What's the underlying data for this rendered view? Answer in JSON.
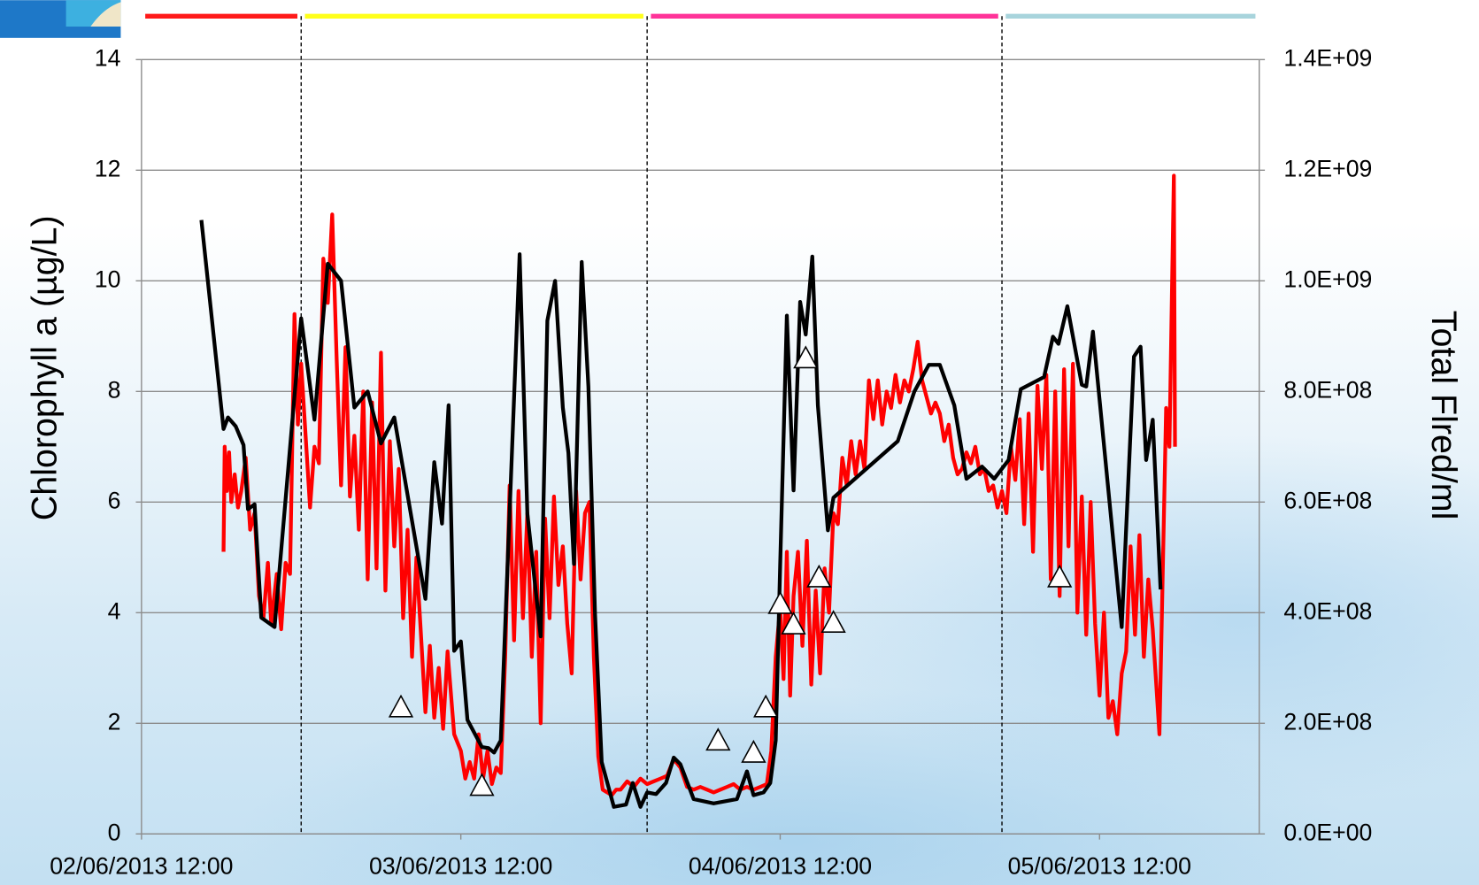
{
  "chart_data": {
    "type": "line",
    "xlim": [
      "2013-06-02T12:00",
      "2013-06-06T00:00"
    ],
    "xticks": [
      {
        "value": "2013-06-02T12:00",
        "label": "02/06/2013 12:00"
      },
      {
        "value": "2013-06-03T12:00",
        "label": "03/06/2013 12:00"
      },
      {
        "value": "2013-06-04T12:00",
        "label": "04/06/2013 12:00"
      },
      {
        "value": "2013-06-05T12:00",
        "label": "05/06/2013 12:00"
      }
    ],
    "ylabel": "Chlorophyll a (µg/L)",
    "ylim": [
      0,
      14
    ],
    "yticks": [
      0,
      2,
      4,
      6,
      8,
      10,
      12,
      14
    ],
    "y2label": "Total Flred/ml",
    "y2lim": [
      0,
      1400000000
    ],
    "y2ticks": [
      {
        "value": 0,
        "label": "0.0E+00"
      },
      {
        "value": 200000000,
        "label": "2.0E+08"
      },
      {
        "value": 400000000,
        "label": "4.0E+08"
      },
      {
        "value": 600000000,
        "label": "6.0E+08"
      },
      {
        "value": 800000000,
        "label": "8.0E+08"
      },
      {
        "value": 1000000000,
        "label": "1.0E+09"
      },
      {
        "value": 1200000000,
        "label": "1.2E+09"
      },
      {
        "value": 1400000000,
        "label": "1.4E+09"
      }
    ],
    "grid": true,
    "periods": [
      {
        "start": "2013-06-02T12:00",
        "end": "2013-06-03T00:00",
        "color": "#ff1a1a"
      },
      {
        "start": "2013-06-03T00:00",
        "end": "2013-06-04T02:00",
        "color": "#ffff1a"
      },
      {
        "start": "2013-06-04T02:00",
        "end": "2013-06-05T04:40",
        "color": "#ff3399"
      },
      {
        "start": "2013-06-05T04:40",
        "end": "2013-06-06T00:00",
        "color": "#a8d4dc"
      }
    ],
    "series": [
      {
        "color": "#ff0000",
        "axis": "y",
        "x": [
          "2013-06-02T18:10",
          "2013-06-02T18:15",
          "2013-06-02T18:25",
          "2013-06-02T18:35",
          "2013-06-02T18:45",
          "2013-06-02T19:00",
          "2013-06-02T19:15",
          "2013-06-02T19:30",
          "2013-06-02T19:50",
          "2013-06-02T20:10",
          "2013-06-02T20:30",
          "2013-06-02T20:50",
          "2013-06-02T21:10",
          "2013-06-02T21:30",
          "2013-06-02T21:45",
          "2013-06-02T22:10",
          "2013-06-02T22:30",
          "2013-06-02T22:50",
          "2013-06-02T23:10",
          "2013-06-02T23:30",
          "2013-06-02T23:45",
          "2013-06-03T00:00",
          "2013-06-03T00:20",
          "2013-06-03T00:40",
          "2013-06-03T01:00",
          "2013-06-03T01:20",
          "2013-06-03T01:40",
          "2013-06-03T02:00",
          "2013-06-03T02:20",
          "2013-06-03T02:40",
          "2013-06-03T03:00",
          "2013-06-03T03:20",
          "2013-06-03T03:40",
          "2013-06-03T04:00",
          "2013-06-03T04:20",
          "2013-06-03T04:40",
          "2013-06-03T05:00",
          "2013-06-03T05:20",
          "2013-06-03T05:40",
          "2013-06-03T06:00",
          "2013-06-03T06:20",
          "2013-06-03T06:40",
          "2013-06-03T07:00",
          "2013-06-03T07:20",
          "2013-06-03T07:40",
          "2013-06-03T08:00",
          "2013-06-03T08:20",
          "2013-06-03T08:40",
          "2013-06-03T09:00",
          "2013-06-03T09:20",
          "2013-06-03T09:40",
          "2013-06-03T10:00",
          "2013-06-03T10:20",
          "2013-06-03T10:40",
          "2013-06-03T11:00",
          "2013-06-03T11:30",
          "2013-06-03T12:00",
          "2013-06-03T12:20",
          "2013-06-03T12:40",
          "2013-06-03T13:00",
          "2013-06-03T13:20",
          "2013-06-03T13:40",
          "2013-06-03T14:00",
          "2013-06-03T14:20",
          "2013-06-03T14:40",
          "2013-06-03T15:00",
          "2013-06-03T15:20",
          "2013-06-03T15:40",
          "2013-06-03T16:00",
          "2013-06-03T16:20",
          "2013-06-03T16:40",
          "2013-06-03T17:00",
          "2013-06-03T17:20",
          "2013-06-03T17:40",
          "2013-06-03T18:00",
          "2013-06-03T18:20",
          "2013-06-03T18:40",
          "2013-06-03T19:00",
          "2013-06-03T19:20",
          "2013-06-03T19:40",
          "2013-06-03T20:00",
          "2013-06-03T20:20",
          "2013-06-03T20:40",
          "2013-06-03T21:00",
          "2013-06-03T21:20",
          "2013-06-03T21:40",
          "2013-06-03T22:00",
          "2013-06-03T22:20",
          "2013-06-03T22:40",
          "2013-06-03T23:00",
          "2013-06-03T23:20",
          "2013-06-03T23:40",
          "2013-06-04T00:00",
          "2013-06-04T00:30",
          "2013-06-04T01:00",
          "2013-06-04T01:30",
          "2013-06-04T02:00",
          "2013-06-04T02:30",
          "2013-06-04T03:00",
          "2013-06-04T03:30",
          "2013-06-04T04:00",
          "2013-06-04T04:30",
          "2013-06-04T05:00",
          "2013-06-04T05:30",
          "2013-06-04T06:00",
          "2013-06-04T06:30",
          "2013-06-04T07:00",
          "2013-06-04T07:30",
          "2013-06-04T08:00",
          "2013-06-04T08:30",
          "2013-06-04T09:00",
          "2013-06-04T09:30",
          "2013-06-04T10:00",
          "2013-06-04T10:30",
          "2013-06-04T11:00",
          "2013-06-04T11:20",
          "2013-06-04T11:40",
          "2013-06-04T12:00",
          "2013-06-04T12:15",
          "2013-06-04T12:30",
          "2013-06-04T12:45",
          "2013-06-04T13:00",
          "2013-06-04T13:20",
          "2013-06-04T13:40",
          "2013-06-04T14:00",
          "2013-06-04T14:20",
          "2013-06-04T14:40",
          "2013-06-04T15:00",
          "2013-06-04T15:20",
          "2013-06-04T15:40",
          "2013-06-04T16:00",
          "2013-06-04T16:20",
          "2013-06-04T16:40",
          "2013-06-04T17:00",
          "2013-06-04T17:20",
          "2013-06-04T17:40",
          "2013-06-04T18:00",
          "2013-06-04T18:20",
          "2013-06-04T18:40",
          "2013-06-04T19:00",
          "2013-06-04T19:20",
          "2013-06-04T19:40",
          "2013-06-04T20:00",
          "2013-06-04T20:20",
          "2013-06-04T20:40",
          "2013-06-04T21:00",
          "2013-06-04T21:20",
          "2013-06-04T21:40",
          "2013-06-04T22:00",
          "2013-06-04T22:20",
          "2013-06-04T22:40",
          "2013-06-04T23:00",
          "2013-06-04T23:20",
          "2013-06-04T23:40",
          "2013-06-05T00:00",
          "2013-06-05T00:20",
          "2013-06-05T00:40",
          "2013-06-05T01:00",
          "2013-06-05T01:20",
          "2013-06-05T01:40",
          "2013-06-05T02:00",
          "2013-06-05T02:20",
          "2013-06-05T02:40",
          "2013-06-05T03:00",
          "2013-06-05T03:20",
          "2013-06-05T03:40",
          "2013-06-05T04:00",
          "2013-06-05T04:20",
          "2013-06-05T04:40",
          "2013-06-05T05:00",
          "2013-06-05T05:20",
          "2013-06-05T05:40",
          "2013-06-05T06:00",
          "2013-06-05T06:20",
          "2013-06-05T06:40",
          "2013-06-05T07:00",
          "2013-06-05T07:20",
          "2013-06-05T07:40",
          "2013-06-05T08:00",
          "2013-06-05T08:20",
          "2013-06-05T08:40",
          "2013-06-05T09:00",
          "2013-06-05T09:20",
          "2013-06-05T09:40",
          "2013-06-05T10:00",
          "2013-06-05T10:20",
          "2013-06-05T10:40",
          "2013-06-05T11:00",
          "2013-06-05T11:20",
          "2013-06-05T11:40",
          "2013-06-05T12:00",
          "2013-06-05T12:20",
          "2013-06-05T12:40",
          "2013-06-05T13:00",
          "2013-06-05T13:20",
          "2013-06-05T13:40",
          "2013-06-05T14:00",
          "2013-06-05T14:20",
          "2013-06-05T14:40",
          "2013-06-05T15:00",
          "2013-06-05T15:20",
          "2013-06-05T15:40",
          "2013-06-05T16:00",
          "2013-06-05T16:30",
          "2013-06-05T17:00",
          "2013-06-05T17:15",
          "2013-06-05T17:35",
          "2013-06-05T17:40"
        ],
        "values": [
          5.1,
          7.0,
          6.2,
          6.9,
          6.0,
          6.5,
          5.9,
          6.2,
          6.8,
          5.5,
          5.8,
          4.3,
          3.9,
          4.9,
          3.8,
          4.7,
          3.7,
          4.9,
          4.7,
          9.4,
          7.4,
          8.5,
          7.2,
          5.9,
          7.0,
          6.7,
          10.4,
          9.6,
          11.2,
          8.6,
          6.3,
          8.8,
          6.1,
          7.2,
          5.5,
          8.0,
          4.6,
          7.8,
          4.8,
          8.7,
          4.4,
          7.1,
          5.2,
          6.6,
          3.9,
          5.5,
          3.2,
          5.0,
          3.6,
          2.2,
          3.4,
          2.1,
          3.0,
          1.9,
          3.3,
          1.8,
          1.5,
          1.0,
          1.3,
          1.0,
          1.8,
          1.0,
          1.5,
          0.9,
          1.2,
          1.1,
          3.2,
          6.3,
          3.5,
          6.2,
          3.9,
          5.8,
          3.2,
          5.1,
          2.0,
          5.7,
          3.9,
          6.1,
          4.5,
          5.2,
          3.8,
          2.9,
          6.2,
          4.6,
          5.8,
          6.0,
          3.2,
          1.4,
          0.8,
          0.75,
          0.7,
          0.8,
          0.8,
          0.95,
          0.85,
          1.0,
          0.9,
          0.95,
          1.0,
          1.05,
          1.35,
          1.2,
          0.85,
          0.8,
          0.85,
          0.8,
          0.75,
          0.8,
          0.85,
          0.9,
          0.8,
          0.85,
          0.8,
          0.85,
          0.9,
          1.5,
          3.2,
          4.1,
          2.8,
          5.1,
          2.5,
          4.3,
          5.1,
          3.4,
          5.3,
          2.7,
          4.4,
          2.9,
          4.8,
          4.0,
          5.8,
          5.6,
          6.8,
          6.3,
          7.1,
          6.5,
          7.1,
          6.6,
          8.2,
          7.5,
          8.2,
          7.4,
          8.0,
          7.7,
          8.3,
          7.8,
          8.2,
          8.0,
          8.4,
          8.9,
          8.2,
          7.9,
          7.6,
          7.8,
          7.6,
          7.1,
          7.4,
          6.8,
          6.5,
          6.6,
          6.9,
          6.7,
          7.0,
          6.5,
          6.6,
          6.2,
          6.3,
          5.9,
          6.2,
          5.8,
          7.0,
          6.4,
          7.5,
          5.6,
          7.6,
          5.1,
          8.1,
          6.6,
          8.3,
          4.6,
          8.0,
          4.3,
          8.4,
          5.2,
          8.5,
          4.0,
          6.1,
          3.6,
          6.0,
          3.8,
          2.5,
          4.0,
          2.1,
          2.4,
          1.8,
          2.9,
          3.3,
          5.2,
          3.6,
          5.4,
          3.2,
          4.6,
          3.7,
          1.8,
          7.7,
          7.0,
          11.9,
          7.0
        ]
      },
      {
        "color": "#000000",
        "axis": "y2",
        "x": [
          "2013-06-02T16:30",
          "2013-06-02T18:10",
          "2013-06-02T18:30",
          "2013-06-02T19:05",
          "2013-06-02T19:40",
          "2013-06-02T20:00",
          "2013-06-02T20:30",
          "2013-06-02T21:00",
          "2013-06-02T22:00",
          "2013-06-03T00:00",
          "2013-06-03T01:00",
          "2013-06-03T02:00",
          "2013-06-03T03:00",
          "2013-06-03T04:00",
          "2013-06-03T05:00",
          "2013-06-03T06:00",
          "2013-06-03T07:00",
          "2013-06-03T09:20",
          "2013-06-03T10:00",
          "2013-06-03T10:35",
          "2013-06-03T11:05",
          "2013-06-03T11:30",
          "2013-06-03T12:00",
          "2013-06-03T12:30",
          "2013-06-03T13:35",
          "2013-06-03T14:05",
          "2013-06-03T14:30",
          "2013-06-03T15:00",
          "2013-06-03T16:25",
          "2013-06-03T17:00",
          "2013-06-03T18:00",
          "2013-06-03T18:30",
          "2013-06-03T19:05",
          "2013-06-03T19:40",
          "2013-06-03T20:05",
          "2013-06-03T20:30",
          "2013-06-03T21:05",
          "2013-06-03T21:35",
          "2013-06-03T22:05",
          "2013-06-03T22:35",
          "2013-06-03T23:30",
          "2013-06-04T00:25",
          "2013-06-04T00:55",
          "2013-06-04T01:30",
          "2013-06-04T02:00",
          "2013-06-04T02:40",
          "2013-06-04T03:25",
          "2013-06-04T04:00",
          "2013-06-04T04:30",
          "2013-06-04T05:30",
          "2013-06-04T07:00",
          "2013-06-04T08:45",
          "2013-06-04T09:30",
          "2013-06-04T10:00",
          "2013-06-04T10:45",
          "2013-06-04T11:15",
          "2013-06-04T11:40",
          "2013-06-04T12:00",
          "2013-06-04T12:30",
          "2013-06-04T13:00",
          "2013-06-04T13:30",
          "2013-06-04T13:55",
          "2013-06-04T14:25",
          "2013-06-04T14:50",
          "2013-06-04T15:35",
          "2013-06-04T16:00",
          "2013-06-04T20:50",
          "2013-06-04T22:05",
          "2013-06-04T23:10",
          "2013-06-05T00:00",
          "2013-06-05T01:05",
          "2013-06-05T02:00",
          "2013-06-05T03:10",
          "2013-06-05T04:05",
          "2013-06-05T05:10",
          "2013-06-05T06:05",
          "2013-06-05T07:50",
          "2013-06-05T08:30",
          "2013-06-05T08:55",
          "2013-06-05T09:35",
          "2013-06-05T10:40",
          "2013-06-05T11:00",
          "2013-06-05T11:30",
          "2013-06-05T13:40",
          "2013-06-05T14:35",
          "2013-06-05T15:05",
          "2013-06-05T15:30",
          "2013-06-05T16:00",
          "2013-06-05T16:35"
        ],
        "values": [
          1110000000.0,
          732000000.0,
          753000000.0,
          737000000.0,
          703000000.0,
          587000000.0,
          596000000.0,
          391000000.0,
          374000000.0,
          932000000.0,
          749000000.0,
          1031000000.0,
          1000000000.0,
          771000000.0,
          800000000.0,
          706000000.0,
          753000000.0,
          425000000.0,
          672000000.0,
          561000000.0,
          775000000.0,
          331000000.0,
          348000000.0,
          206000000.0,
          157000000.0,
          155000000.0,
          147000000.0,
          169000000.0,
          1048000000.0,
          579000000.0,
          357000000.0,
          928000000.0,
          1000000000.0,
          771000000.0,
          689000000.0,
          488000000.0,
          1034000000.0,
          809000000.0,
          399000000.0,
          130000000.0,
          49000000.0,
          53000000.0,
          92000000.0,
          49000000.0,
          75000000.0,
          72000000.0,
          92000000.0,
          138000000.0,
          126000000.0,
          63000000.0,
          55000000.0,
          63000000.0,
          113000000.0,
          70000000.0,
          75000000.0,
          92000000.0,
          169000000.0,
          485000000.0,
          937000000.0,
          621000000.0,
          962000000.0,
          903000000.0,
          1044000000.0,
          775000000.0,
          549000000.0,
          608000000.0,
          710000000.0,
          800000000.0,
          848000000.0,
          848000000.0,
          775000000.0,
          642000000.0,
          664000000.0,
          642000000.0,
          676000000.0,
          804000000.0,
          826000000.0,
          899000000.0,
          886000000.0,
          954000000.0,
          812000000.0,
          809000000.0,
          908000000.0,
          374000000.0,
          863000000.0,
          881000000.0,
          676000000.0,
          749000000.0,
          442000000.0
        ]
      },
      {
        "color": "#000000",
        "axis": "y",
        "marker": "triangle",
        "x": [
          "2013-06-03T07:30",
          "2013-06-03T13:35",
          "2013-06-04T07:20",
          "2013-06-04T10:00",
          "2013-06-04T10:55",
          "2013-06-04T12:00",
          "2013-06-04T13:00",
          "2013-06-04T13:55",
          "2013-06-04T14:55",
          "2013-06-04T16:00",
          "2013-06-05T09:00"
        ],
        "values": [
          2.29,
          0.87,
          1.69,
          1.47,
          2.29,
          4.16,
          3.79,
          8.6,
          4.64,
          3.82,
          4.64
        ]
      }
    ]
  }
}
